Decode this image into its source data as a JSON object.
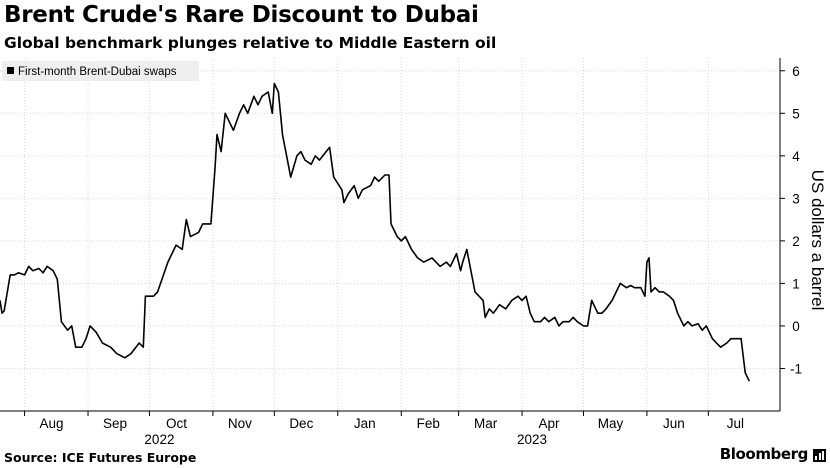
{
  "title": "Brent Crude's Rare Discount to Dubai",
  "subtitle": "Global benchmark plunges relative to Middle Eastern oil",
  "source": "Source: ICE Futures Europe",
  "brand": "Bloomberg",
  "colors": {
    "line": "#000000",
    "grid": "#d9d9d9",
    "legend_bg": "#eeeeee",
    "axis": "#000000"
  },
  "chart_data": {
    "type": "line",
    "title": "Brent Crude's Rare Discount to Dubai",
    "subtitle": "Global benchmark plunges relative to Middle Eastern oil",
    "ylabel": "US dollars a barrel",
    "ylim": [
      -2,
      6.3
    ],
    "y_ticks": [
      -1,
      0,
      1,
      2,
      3,
      4,
      5,
      6
    ],
    "y_tick_labels": [
      "-1",
      "0",
      "1",
      "2",
      "3",
      "4",
      "5",
      "6"
    ],
    "x_range": [
      "2022-07-20",
      "2023-08-05"
    ],
    "x_ticks": [
      {
        "date": "2022-08-01",
        "label": "Aug"
      },
      {
        "date": "2022-09-01",
        "label": "Sep"
      },
      {
        "date": "2022-10-01",
        "label": "Oct"
      },
      {
        "date": "2022-11-01",
        "label": "Nov"
      },
      {
        "date": "2022-12-01",
        "label": "Dec"
      },
      {
        "date": "2023-01-01",
        "label": "Jan"
      },
      {
        "date": "2023-02-01",
        "label": "Feb"
      },
      {
        "date": "2023-03-01",
        "label": "Mar"
      },
      {
        "date": "2023-04-01",
        "label": "Apr"
      },
      {
        "date": "2023-05-01",
        "label": "May"
      },
      {
        "date": "2023-06-01",
        "label": "Jun"
      },
      {
        "date": "2023-07-01",
        "label": "Jul"
      }
    ],
    "year_labels": [
      {
        "date": "2022-10-01",
        "label": "2022"
      },
      {
        "date": "2023-04-01",
        "label": "2023"
      }
    ],
    "grid": true,
    "legend_position": "top-left",
    "series": [
      {
        "name": "First-month Brent-Dubai swaps",
        "points": [
          [
            "2022-07-20",
            0.6
          ],
          [
            "2022-07-21",
            0.3
          ],
          [
            "2022-07-22",
            0.35
          ],
          [
            "2022-07-25",
            1.2
          ],
          [
            "2022-07-27",
            1.2
          ],
          [
            "2022-07-29",
            1.25
          ],
          [
            "2022-08-01",
            1.2
          ],
          [
            "2022-08-03",
            1.4
          ],
          [
            "2022-08-05",
            1.3
          ],
          [
            "2022-08-08",
            1.35
          ],
          [
            "2022-08-10",
            1.25
          ],
          [
            "2022-08-12",
            1.4
          ],
          [
            "2022-08-15",
            1.3
          ],
          [
            "2022-08-17",
            1.1
          ],
          [
            "2022-08-19",
            0.1
          ],
          [
            "2022-08-22",
            -0.1
          ],
          [
            "2022-08-24",
            0.0
          ],
          [
            "2022-08-26",
            -0.5
          ],
          [
            "2022-08-29",
            -0.5
          ],
          [
            "2022-08-31",
            -0.3
          ],
          [
            "2022-09-02",
            0.0
          ],
          [
            "2022-09-05",
            -0.15
          ],
          [
            "2022-09-08",
            -0.4
          ],
          [
            "2022-09-12",
            -0.5
          ],
          [
            "2022-09-15",
            -0.65
          ],
          [
            "2022-09-19",
            -0.75
          ],
          [
            "2022-09-22",
            -0.65
          ],
          [
            "2022-09-26",
            -0.4
          ],
          [
            "2022-09-28",
            -0.5
          ],
          [
            "2022-09-29",
            0.7
          ],
          [
            "2022-10-03",
            0.7
          ],
          [
            "2022-10-05",
            0.8
          ],
          [
            "2022-10-10",
            1.5
          ],
          [
            "2022-10-12",
            1.7
          ],
          [
            "2022-10-14",
            1.9
          ],
          [
            "2022-10-17",
            1.8
          ],
          [
            "2022-10-19",
            2.5
          ],
          [
            "2022-10-21",
            2.1
          ],
          [
            "2022-10-25",
            2.2
          ],
          [
            "2022-10-27",
            2.4
          ],
          [
            "2022-10-31",
            2.4
          ],
          [
            "2022-11-02",
            3.7
          ],
          [
            "2022-11-03",
            4.5
          ],
          [
            "2022-11-05",
            4.1
          ],
          [
            "2022-11-07",
            5.0
          ],
          [
            "2022-11-09",
            4.8
          ],
          [
            "2022-11-11",
            4.6
          ],
          [
            "2022-11-14",
            5.0
          ],
          [
            "2022-11-16",
            5.2
          ],
          [
            "2022-11-18",
            5.0
          ],
          [
            "2022-11-21",
            5.4
          ],
          [
            "2022-11-23",
            5.2
          ],
          [
            "2022-11-25",
            5.4
          ],
          [
            "2022-11-28",
            5.5
          ],
          [
            "2022-11-30",
            5.0
          ],
          [
            "2022-12-01",
            5.7
          ],
          [
            "2022-12-03",
            5.5
          ],
          [
            "2022-12-05",
            4.5
          ],
          [
            "2022-12-07",
            4.0
          ],
          [
            "2022-12-09",
            3.5
          ],
          [
            "2022-12-12",
            4.0
          ],
          [
            "2022-12-14",
            4.1
          ],
          [
            "2022-12-16",
            3.9
          ],
          [
            "2022-12-19",
            3.8
          ],
          [
            "2022-12-21",
            4.0
          ],
          [
            "2022-12-23",
            3.9
          ],
          [
            "2022-12-28",
            4.2
          ],
          [
            "2022-12-30",
            3.5
          ],
          [
            "2023-01-03",
            3.2
          ],
          [
            "2023-01-04",
            2.9
          ],
          [
            "2023-01-06",
            3.1
          ],
          [
            "2023-01-09",
            3.3
          ],
          [
            "2023-01-11",
            3.0
          ],
          [
            "2023-01-13",
            3.2
          ],
          [
            "2023-01-17",
            3.3
          ],
          [
            "2023-01-19",
            3.5
          ],
          [
            "2023-01-21",
            3.4
          ],
          [
            "2023-01-24",
            3.55
          ],
          [
            "2023-01-26",
            3.55
          ],
          [
            "2023-01-27",
            2.4
          ],
          [
            "2023-01-30",
            2.1
          ],
          [
            "2023-02-01",
            2.0
          ],
          [
            "2023-02-03",
            2.1
          ],
          [
            "2023-02-06",
            1.8
          ],
          [
            "2023-02-09",
            1.6
          ],
          [
            "2023-02-12",
            1.5
          ],
          [
            "2023-02-16",
            1.6
          ],
          [
            "2023-02-20",
            1.4
          ],
          [
            "2023-02-23",
            1.5
          ],
          [
            "2023-02-25",
            1.4
          ],
          [
            "2023-02-28",
            1.7
          ],
          [
            "2023-03-02",
            1.3
          ],
          [
            "2023-03-03",
            1.5
          ],
          [
            "2023-03-05",
            1.8
          ],
          [
            "2023-03-07",
            1.3
          ],
          [
            "2023-03-09",
            0.8
          ],
          [
            "2023-03-13",
            0.6
          ],
          [
            "2023-03-14",
            0.2
          ],
          [
            "2023-03-16",
            0.4
          ],
          [
            "2023-03-18",
            0.3
          ],
          [
            "2023-03-21",
            0.5
          ],
          [
            "2023-03-24",
            0.4
          ],
          [
            "2023-03-27",
            0.6
          ],
          [
            "2023-03-30",
            0.7
          ],
          [
            "2023-04-01",
            0.6
          ],
          [
            "2023-04-03",
            0.7
          ],
          [
            "2023-04-05",
            0.3
          ],
          [
            "2023-04-07",
            0.1
          ],
          [
            "2023-04-10",
            0.1
          ],
          [
            "2023-04-12",
            0.2
          ],
          [
            "2023-04-14",
            0.1
          ],
          [
            "2023-04-17",
            0.2
          ],
          [
            "2023-04-19",
            0.0
          ],
          [
            "2023-04-21",
            0.1
          ],
          [
            "2023-04-24",
            0.1
          ],
          [
            "2023-04-26",
            0.2
          ],
          [
            "2023-04-28",
            0.1
          ],
          [
            "2023-05-01",
            0.0
          ],
          [
            "2023-05-03",
            0.0
          ],
          [
            "2023-05-05",
            0.6
          ],
          [
            "2023-05-08",
            0.3
          ],
          [
            "2023-05-10",
            0.3
          ],
          [
            "2023-05-12",
            0.4
          ],
          [
            "2023-05-15",
            0.6
          ],
          [
            "2023-05-17",
            0.8
          ],
          [
            "2023-05-19",
            1.0
          ],
          [
            "2023-05-22",
            0.9
          ],
          [
            "2023-05-24",
            0.95
          ],
          [
            "2023-05-26",
            0.9
          ],
          [
            "2023-05-29",
            0.9
          ],
          [
            "2023-05-31",
            0.7
          ],
          [
            "2023-06-01",
            1.5
          ],
          [
            "2023-06-02",
            1.6
          ],
          [
            "2023-06-03",
            0.8
          ],
          [
            "2023-06-05",
            0.9
          ],
          [
            "2023-06-07",
            0.8
          ],
          [
            "2023-06-09",
            0.8
          ],
          [
            "2023-06-12",
            0.7
          ],
          [
            "2023-06-14",
            0.6
          ],
          [
            "2023-06-16",
            0.3
          ],
          [
            "2023-06-19",
            0.0
          ],
          [
            "2023-06-21",
            0.1
          ],
          [
            "2023-06-23",
            0.0
          ],
          [
            "2023-06-26",
            0.05
          ],
          [
            "2023-06-28",
            -0.1
          ],
          [
            "2023-06-30",
            0.0
          ],
          [
            "2023-07-03",
            -0.3
          ],
          [
            "2023-07-05",
            -0.4
          ],
          [
            "2023-07-07",
            -0.5
          ],
          [
            "2023-07-10",
            -0.4
          ],
          [
            "2023-07-12",
            -0.3
          ],
          [
            "2023-07-14",
            -0.3
          ],
          [
            "2023-07-17",
            -0.3
          ],
          [
            "2023-07-19",
            -1.1
          ],
          [
            "2023-07-21",
            -1.3
          ]
        ]
      }
    ]
  }
}
